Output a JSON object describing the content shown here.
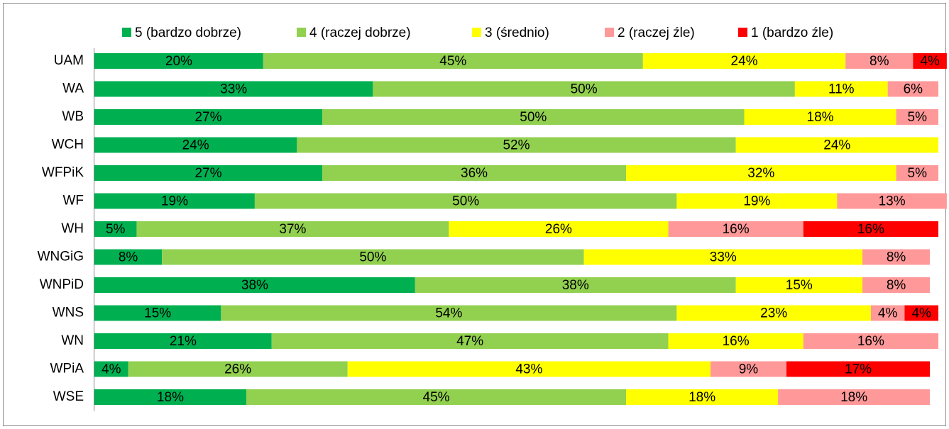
{
  "chart_data": {
    "type": "stacked_barh",
    "categories": [
      "UAM",
      "WA",
      "WB",
      "WCH",
      "WFPiK",
      "WF",
      "WH",
      "WNGiG",
      "WNPiD",
      "WNS",
      "WN",
      "WPiA",
      "WSE"
    ],
    "xlim": [
      0,
      100
    ],
    "series": [
      {
        "name": "5 (bardzo dobrze)",
        "color": "#00b050",
        "values": [
          20,
          33,
          27,
          24,
          27,
          19,
          5,
          8,
          38,
          15,
          21,
          4,
          18
        ],
        "value_labels": [
          "20%",
          "33%",
          "27%",
          "24%",
          "27%",
          "19%",
          "5%",
          "8%",
          "38%",
          "15%",
          "21%",
          "4%",
          "18%"
        ]
      },
      {
        "name": "4 (raczej dobrze)",
        "color": "#92d050",
        "values": [
          45,
          50,
          50,
          52,
          36,
          50,
          37,
          50,
          38,
          54,
          47,
          26,
          45
        ],
        "value_labels": [
          "45%",
          "50%",
          "50%",
          "52%",
          "36%",
          "50%",
          "37%",
          "50%",
          "38%",
          "54%",
          "47%",
          "26%",
          "45%"
        ]
      },
      {
        "name": "3 (średnio)",
        "color": "#ffff00",
        "values": [
          24,
          11,
          18,
          24,
          32,
          19,
          26,
          33,
          15,
          23,
          16,
          43,
          18
        ],
        "value_labels": [
          "24%",
          "11%",
          "18%",
          "24%",
          "32%",
          "19%",
          "26%",
          "33%",
          "15%",
          "23%",
          "16%",
          "43%",
          "18%"
        ]
      },
      {
        "name": "2 (raczej źle)",
        "color": "#ff9999",
        "values": [
          8,
          6,
          5,
          null,
          5,
          13,
          16,
          8,
          8,
          4,
          16,
          9,
          18
        ],
        "value_labels": [
          "8%",
          "6%",
          "5%",
          null,
          "5%",
          "13%",
          "16%",
          "8%",
          "8%",
          "4%",
          "16%",
          "9%",
          "18%"
        ]
      },
      {
        "name": "1 (bardzo źle)",
        "color": "#ff0000",
        "values": [
          4,
          null,
          null,
          null,
          null,
          null,
          16,
          null,
          null,
          4,
          null,
          17,
          null
        ],
        "value_labels": [
          "4%",
          null,
          null,
          null,
          null,
          null,
          "16%",
          null,
          null,
          "4%",
          null,
          "17%",
          null
        ]
      }
    ]
  }
}
